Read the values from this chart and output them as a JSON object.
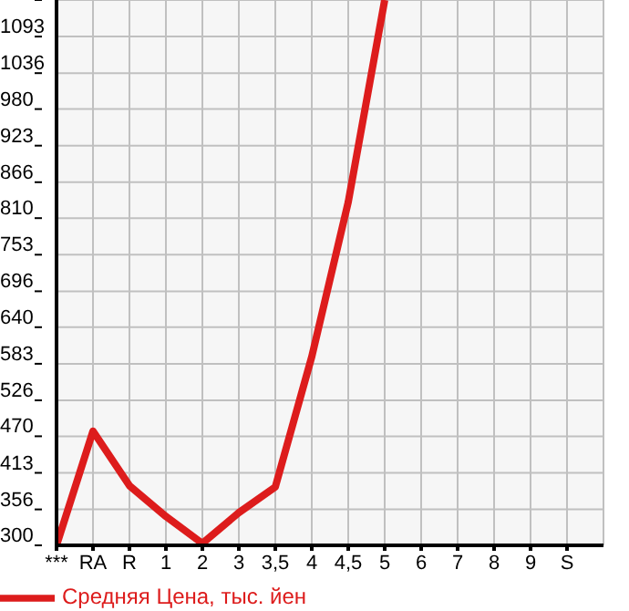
{
  "chart_data": {
    "type": "line",
    "categories": [
      "***",
      "RA",
      "R",
      "1",
      "2",
      "3",
      "3,5",
      "4",
      "4,5",
      "5",
      "6",
      "7",
      "8",
      "9",
      "S"
    ],
    "series": [
      {
        "name": "Средняя Цена, тыс. йен",
        "color": "#dd1c1c",
        "values": [
          300,
          478,
          393,
          345,
          303,
          351,
          391,
          594,
          835,
          1150,
          null,
          null,
          null,
          null,
          null
        ]
      }
    ],
    "ylim": [
      300,
      1150
    ],
    "yticks": [
      300,
      356,
      413,
      470,
      526,
      583,
      640,
      696,
      753,
      810,
      866,
      923,
      980,
      1036,
      1093,
      {
        "value": 1150,
        "label": null
      }
    ],
    "grid": true,
    "legend": "bottom",
    "marker": "none",
    "line_style": "solid"
  }
}
